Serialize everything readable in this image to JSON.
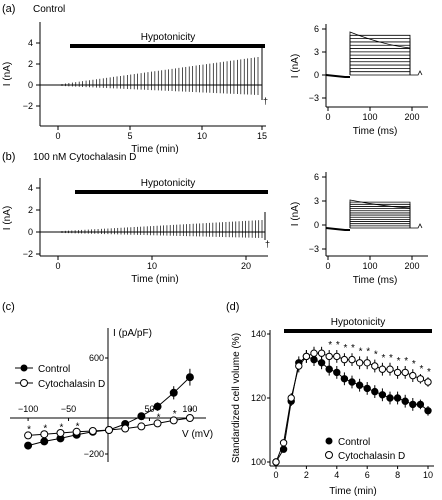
{
  "panels": {
    "a": {
      "label": "(a)",
      "condition": "Control",
      "left": {
        "bar_label": "Hypotonicity",
        "xlabel": "Time (min)",
        "ylabel": "I (nA)",
        "xticks": [
          "0",
          "5",
          "10",
          "15"
        ],
        "yticks": [
          "4",
          "2",
          "0",
          "−2"
        ],
        "marker": "†"
      },
      "right": {
        "xlabel": "Time (ms)",
        "ylabel": "I (nA)",
        "xticks": [
          "0",
          "100",
          "200"
        ],
        "yticks": [
          "6",
          "3",
          "0",
          "−3"
        ]
      }
    },
    "b": {
      "label": "(b)",
      "condition": "100 nM Cytochalasin D",
      "left": {
        "bar_label": "Hypotonicity",
        "xlabel": "Time (min)",
        "ylabel": "I (nA)",
        "xticks": [
          "0",
          "10",
          "20"
        ],
        "yticks": [
          "4",
          "2",
          "0",
          "−2"
        ],
        "marker": "†"
      },
      "right": {
        "xlabel": "Time (ms)",
        "ylabel": "I (nA)",
        "xticks": [
          "0",
          "100",
          "200"
        ],
        "yticks": [
          "6",
          "3",
          "0",
          "−3"
        ]
      }
    },
    "c": {
      "label": "(c)",
      "legend": [
        "Control",
        "Cytochalasin D"
      ],
      "star": "*"
    },
    "d": {
      "label": "(d)",
      "bar_label": "Hypotonicity",
      "legend": [
        "Control",
        "Cytochalasin D"
      ],
      "star": "*"
    }
  },
  "chart_data": [
    {
      "type": "line",
      "panel": "c",
      "xlabel": "V (mV)",
      "ylabel": "I (pA/pF)",
      "xlim": [
        -110,
        110
      ],
      "ylim": [
        -200,
        600
      ],
      "xticks": [
        -100,
        -50,
        50,
        100
      ],
      "yticks": [
        -200,
        600
      ],
      "series": [
        {
          "name": "Control",
          "x": [
            -100,
            -80,
            -60,
            -40,
            -20,
            0,
            20,
            40,
            60,
            80,
            100
          ],
          "y": [
            -130,
            -95,
            -70,
            -40,
            -15,
            0,
            50,
            115,
            195,
            310,
            440
          ],
          "err": [
            20,
            15,
            12,
            10,
            6,
            4,
            15,
            25,
            35,
            55,
            70
          ]
        },
        {
          "name": "Cytochalasin D",
          "x": [
            -100,
            -80,
            -60,
            -40,
            -20,
            0,
            20,
            40,
            60,
            80,
            100
          ],
          "y": [
            -45,
            -35,
            -25,
            -15,
            -8,
            0,
            12,
            30,
            55,
            80,
            100
          ],
          "err": [
            8,
            6,
            5,
            4,
            3,
            2,
            4,
            6,
            8,
            10,
            12
          ]
        }
      ],
      "significance_x": [
        -100,
        -80,
        -60,
        -40,
        40,
        60,
        80,
        100
      ]
    },
    {
      "type": "line",
      "panel": "d",
      "xlabel": "Time (min)",
      "ylabel": "Standardized cell volume (%)",
      "xlim": [
        0,
        10
      ],
      "ylim": [
        100,
        140
      ],
      "xticks": [
        0,
        2,
        4,
        6,
        8,
        10
      ],
      "yticks": [
        100,
        120,
        140
      ],
      "series": [
        {
          "name": "Control",
          "x": [
            0,
            0.5,
            1,
            1.5,
            2,
            2.5,
            3,
            3.5,
            4,
            4.5,
            5,
            5.5,
            6,
            6.5,
            7,
            7.5,
            8,
            8.5,
            9,
            9.5,
            10
          ],
          "y": [
            100,
            104,
            119,
            131,
            133,
            132,
            131,
            129,
            128,
            126,
            125,
            124,
            123,
            122,
            121,
            120,
            120,
            119,
            118,
            118,
            116
          ],
          "err": [
            0.5,
            1,
            1.5,
            2,
            2,
            2,
            2,
            2,
            2,
            2,
            2,
            2,
            2,
            2,
            2,
            2,
            2,
            2,
            2,
            1.5,
            1.5
          ]
        },
        {
          "name": "Cytochalasin D",
          "x": [
            0,
            0.5,
            1,
            1.5,
            2,
            2.5,
            3,
            3.5,
            4,
            4.5,
            5,
            5.5,
            6,
            6.5,
            7,
            7.5,
            8,
            8.5,
            9,
            9.5,
            10
          ],
          "y": [
            100,
            106,
            120,
            130,
            133,
            134,
            134,
            133,
            133,
            132,
            132,
            131,
            131,
            130,
            129,
            129,
            128,
            128,
            127,
            126,
            125
          ],
          "err": [
            0.5,
            1,
            1.5,
            2,
            2,
            2,
            2,
            2,
            2,
            2,
            2,
            2,
            2,
            2,
            2,
            2,
            2,
            2,
            2,
            1.5,
            1.5
          ]
        }
      ],
      "significance_x": [
        3.5,
        4,
        4.5,
        5,
        5.5,
        6,
        6.5,
        7,
        7.5,
        8,
        8.5,
        9,
        9.5,
        10
      ]
    }
  ]
}
